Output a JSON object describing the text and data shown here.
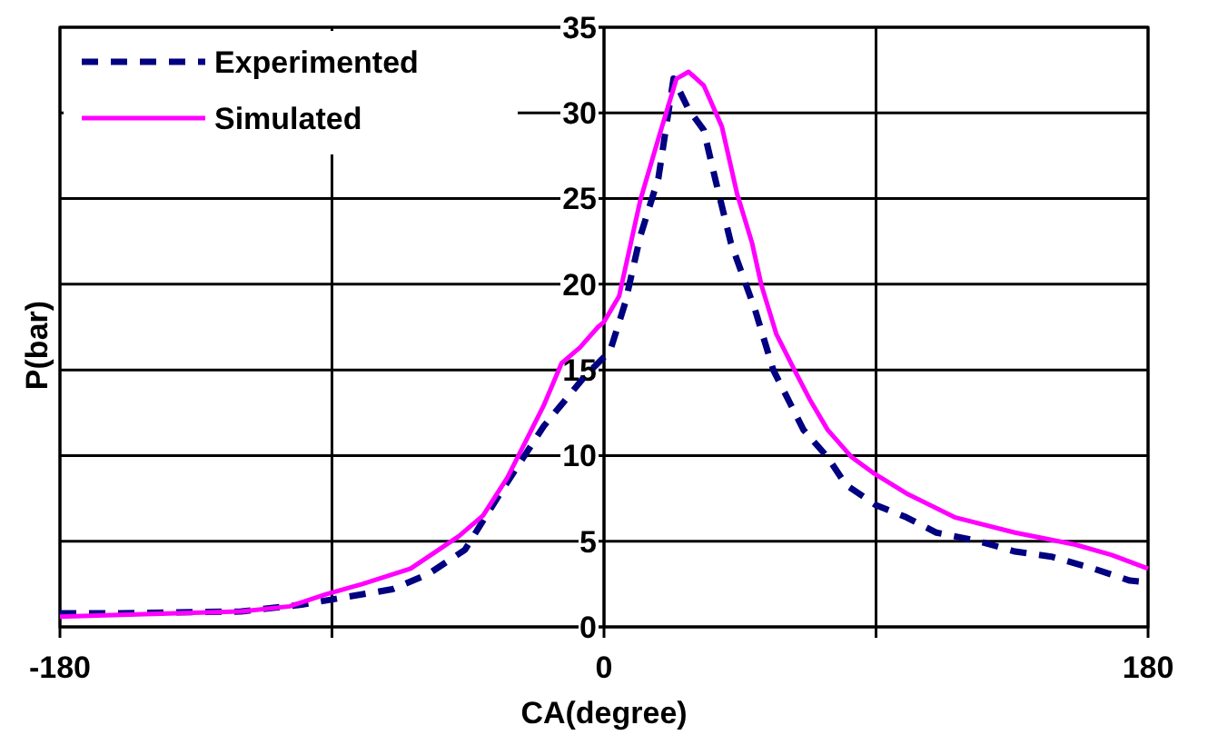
{
  "chart_data": {
    "type": "line",
    "xlabel": "CA(degree)",
    "ylabel": "P(bar)",
    "xlim": [
      -180,
      180
    ],
    "xticks": [
      -180,
      {
        "value": -90,
        "label": null
      },
      0,
      {
        "value": 90,
        "label": null
      },
      180
    ],
    "ylim": [
      0,
      35
    ],
    "yticks": [
      0,
      5,
      10,
      15,
      20,
      25,
      30,
      35
    ],
    "grid": true,
    "legend": "top left",
    "series": [
      {
        "name": "Experimented",
        "color": "#000080",
        "line_style": "dashed",
        "x": [
          -180,
          -160,
          -120,
          -100,
          -90,
          -70,
          -58,
          -46,
          -34,
          -20,
          -6,
          2,
          7,
          12,
          18,
          23,
          28,
          33,
          37,
          42,
          50,
          56,
          62,
          66,
          74,
          80,
          90,
          100,
          110,
          124,
          136,
          148,
          162,
          174,
          180
        ],
        "values": [
          0.8,
          0.8,
          0.9,
          1.3,
          1.6,
          2.2,
          3.1,
          4.5,
          7.9,
          11.7,
          14.7,
          16.1,
          18.9,
          22.8,
          26.2,
          32.0,
          30.2,
          29.0,
          26.0,
          22.4,
          18.5,
          15.0,
          12.9,
          11.5,
          9.9,
          8.3,
          7.1,
          6.4,
          5.5,
          5.0,
          4.4,
          4.1,
          3.4,
          2.7,
          2.6
        ]
      },
      {
        "name": "Simulated",
        "color": "#ff00ff",
        "line_style": "solid",
        "x": [
          -180,
          -160,
          -120,
          -104,
          -92,
          -80,
          -64,
          -48,
          -40,
          -32,
          -26,
          -20,
          -14,
          -8,
          -2,
          0,
          5,
          12,
          18,
          24,
          28,
          33,
          39,
          44,
          49,
          52,
          57,
          63,
          68,
          74,
          82,
          89,
          100,
          116,
          136,
          156,
          168,
          180
        ],
        "values": [
          0.6,
          0.7,
          0.9,
          1.2,
          1.9,
          2.5,
          3.4,
          5.3,
          6.5,
          8.7,
          10.8,
          12.9,
          15.4,
          16.3,
          17.5,
          17.8,
          19.3,
          24.9,
          28.5,
          32.0,
          32.4,
          31.6,
          29.2,
          25.3,
          22.4,
          20.0,
          17.1,
          15.0,
          13.3,
          11.5,
          9.9,
          9.0,
          7.8,
          6.4,
          5.5,
          4.8,
          4.2,
          3.4
        ]
      }
    ]
  }
}
